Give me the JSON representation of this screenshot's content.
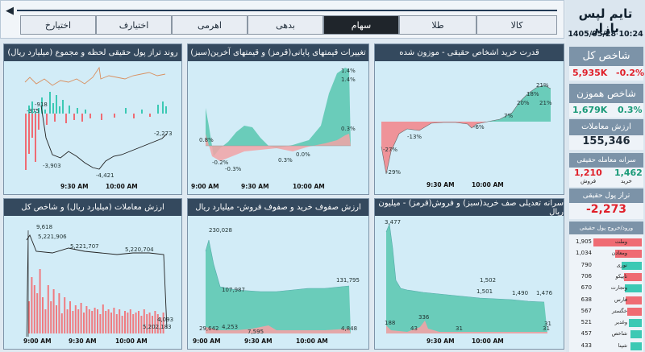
{
  "header": {
    "back_icon": "back-arrow-icon",
    "tabs": [
      {
        "label": "کالا",
        "active": false
      },
      {
        "label": "طلا",
        "active": false
      },
      {
        "label": "سهام",
        "active": true
      },
      {
        "label": "بدهی",
        "active": false
      },
      {
        "label": "اهرمی",
        "active": false
      },
      {
        "label": "اختیارف",
        "active": false
      },
      {
        "label": "اختیارخ",
        "active": false
      }
    ]
  },
  "sidebar": {
    "title": "تایم لپس بازار",
    "datetime": "1405/05/28 10:24",
    "total_index": {
      "label": "شاخص کل",
      "value": "5,935K",
      "change": "-0.2%"
    },
    "equal_index": {
      "label": "شاخص هموزن",
      "value": "1,679K",
      "change": "0.3%"
    },
    "trade_value": {
      "label": "ارزش معاملات",
      "value": "155,346"
    },
    "per_capita": {
      "label": "سرانه معامله حقیقی",
      "sell_value": "1,210",
      "sell_label": "فروش",
      "buy_value": "1,462",
      "buy_label": "خرید"
    },
    "net_real": {
      "label": "تراز پول حقیقی",
      "value": "-2,273"
    },
    "flow": {
      "label": "ورود/خروج پول حقیقی",
      "rows": [
        {
          "value": "1,905",
          "name": "وملت",
          "color": "#ef6b73"
        },
        {
          "value": "1,034",
          "name": "ومعادن",
          "color": "#ef6b73"
        },
        {
          "value": "790",
          "name": "نوری",
          "color": "#3cc9b4"
        },
        {
          "value": "706",
          "name": "تاپیکو",
          "color": "#ef6b73"
        },
        {
          "value": "670",
          "name": "وتجارت",
          "color": "#3cc9b4"
        },
        {
          "value": "638",
          "name": "فارس",
          "color": "#ef6b73"
        },
        {
          "value": "567",
          "name": "خگستر",
          "color": "#ef6b73"
        },
        {
          "value": "521",
          "name": "وغدیر",
          "color": "#3cc9b4"
        },
        {
          "value": "457",
          "name": "شاخص",
          "color": "#3cc9b4"
        },
        {
          "value": "433",
          "name": "شپنا",
          "color": "#3cc9b4"
        }
      ]
    }
  },
  "panels": {
    "p1": {
      "title": "قدرت خرید اشخاص حقیقی - موزون شده"
    },
    "p2": {
      "title": "تغییرات قیمتهای پایانی(قرمز) و قیمتهای آخرین(سبز)"
    },
    "p3": {
      "title": "روند تراز پول حقیقی لحظه و مجموع (میلیارد ریال)"
    },
    "p4": {
      "title": "سرانه تعدیلی صف خرید(سبز) و فروش(قرمز) - میلیون ریال"
    },
    "p5": {
      "title": "ارزش صفوف خرید و صفوف فروش- میلیارد ریال"
    },
    "p6": {
      "title": "ارزش معاملات (میلیارد ریال) و شاخص کل"
    }
  },
  "chart_data": [
    {
      "type": "area",
      "title": "قدرت خرید اشخاص حقیقی - موزون شده",
      "x_ticks": [
        "9:30 AM",
        "10:00 AM"
      ],
      "annotations": [
        "-29%",
        "-27%",
        "-13%",
        "-6%",
        "7%",
        "18%",
        "20%",
        "21%",
        "21%"
      ],
      "series": [
        {
          "values": [
            -27,
            -29,
            -22,
            -13,
            -8,
            -4,
            -3,
            -2,
            -6,
            -3,
            0,
            2,
            7,
            12,
            18,
            20,
            21,
            21
          ]
        }
      ]
    },
    {
      "type": "area",
      "title": "تغییرات قیمتهای پایانی(قرمز) و قیمتهای آخرین(سبز)",
      "x_ticks": [
        "9:00 AM",
        "9:30 AM",
        "10:00 AM"
      ],
      "annotations": [
        "0.8%",
        "-0.2%",
        "-0.3%",
        "0.3%",
        "0.0%",
        "1.4%",
        "1.4%",
        "0.3%"
      ],
      "series": [
        {
          "values": [
            0.8,
            -0.2,
            0.0,
            0.6,
            0.8,
            0.6,
            0.3,
            0.3,
            0.6,
            1.0,
            1.3,
            1.4,
            1.4
          ]
        },
        {
          "values": [
            0.2,
            -0.3,
            -0.2,
            -0.1,
            0.0,
            0.0,
            0.0,
            0.0,
            0.1,
            0.2,
            0.2,
            0.3,
            0.3
          ]
        }
      ]
    },
    {
      "type": "line",
      "title": "روند تراز پول حقیقی لحظه و مجموع (میلیارد ریال)",
      "x_ticks": [
        "9:30 AM",
        "10:00 AM"
      ],
      "annotations": [
        "-918",
        "-375",
        "-3,903",
        "-4,421",
        "-2,273"
      ],
      "series": [
        {
          "values": [
            -918,
            -375,
            -2500,
            -3903,
            -3600,
            -4200,
            -4421,
            -3900,
            -3500,
            -3000,
            -2800,
            -2500,
            -2273
          ]
        }
      ]
    },
    {
      "type": "area",
      "title": "سرانه تعدیلی صف خرید(سبز) و فروش(قرمز) - میلیون ریال",
      "x_ticks": [
        "9:30 AM",
        "10:00 AM"
      ],
      "annotations": [
        "3,477",
        "188",
        "43",
        "336",
        "31",
        "31",
        "1,502",
        "1,501",
        "1,490",
        "1,476",
        "31"
      ],
      "series": [
        {
          "values": [
            3477,
            2200,
            1800,
            1650,
            1600,
            1560,
            1540,
            1520,
            1502,
            1501,
            1495,
            1490,
            1480,
            1476
          ]
        },
        {
          "values": [
            188,
            43,
            60,
            336,
            80,
            40,
            31,
            31,
            31,
            31,
            31,
            31,
            31,
            31
          ]
        }
      ]
    },
    {
      "type": "area",
      "title": "ارزش صفوف خرید و صفوف فروش- میلیارد ریال",
      "x_ticks": [
        "9:00 AM",
        "9:30 AM",
        "10:00 AM"
      ],
      "annotations": [
        "230,028",
        "107,987",
        "131,795",
        "29,642",
        "4,253",
        "7,595",
        "4,848"
      ],
      "series": [
        {
          "values": [
            29642,
            230028,
            140000,
            107987,
            110000,
            115000,
            118000,
            120000,
            125000,
            128000,
            130000,
            131795
          ]
        },
        {
          "values": [
            4253,
            5000,
            4500,
            4000,
            4200,
            7595,
            5000,
            4500,
            4700,
            4800,
            4848
          ]
        }
      ]
    },
    {
      "type": "bar",
      "title": "ارزش معاملات (میلیارد ریال) و شاخص کل",
      "x_ticks": [
        "9:00 AM",
        "9:30 AM",
        "10:00 AM"
      ],
      "annotations": [
        "9,618",
        "5,221,906",
        "5,221,707",
        "5,220,704",
        "5,202,183",
        "4,093"
      ],
      "series": [
        {
          "values": [
            5202183,
            5221906,
            5221707,
            5220800,
            5220704,
            4093
          ]
        }
      ]
    }
  ]
}
